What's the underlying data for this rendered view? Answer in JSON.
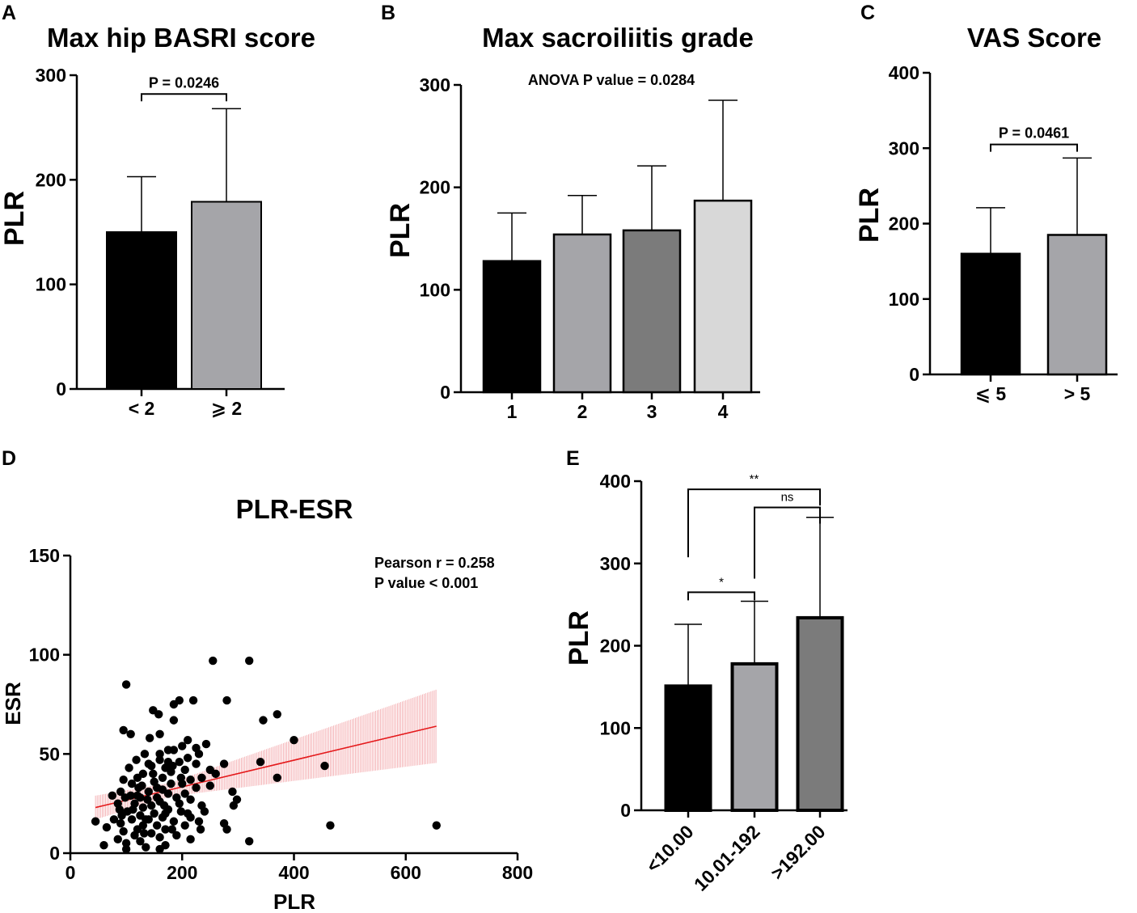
{
  "figure": {
    "panels": [
      "A",
      "B",
      "C",
      "D",
      "E"
    ]
  },
  "colors": {
    "black": "#000000",
    "gray1": "#a5a5a9",
    "gray2": "#7b7b7b",
    "gray3": "#d8d8d8",
    "regression": "#e41a1c",
    "band": "#f2a0a4"
  },
  "chart_data": [
    {
      "id": "A",
      "type": "bar",
      "title": "Max hip BASRI score",
      "ylabel": "PLR",
      "xlabel": "",
      "ylim": [
        0,
        300
      ],
      "yticks": [
        0,
        100,
        200,
        300
      ],
      "categories": [
        "< 2",
        "⩾ 2"
      ],
      "values": [
        150,
        179
      ],
      "errors": [
        53,
        89
      ],
      "fills": [
        "#000000",
        "#a5a5a9"
      ],
      "brackets": [
        {
          "from": 0,
          "to": 1,
          "y": 282,
          "label": "P = 0.0246"
        }
      ]
    },
    {
      "id": "B",
      "type": "bar",
      "title": "Max sacroiliitis grade",
      "ylabel": "PLR",
      "xlabel": "",
      "ylim": [
        0,
        300
      ],
      "yticks": [
        0,
        100,
        200,
        300
      ],
      "categories": [
        "1",
        "2",
        "3",
        "4"
      ],
      "values": [
        128,
        154,
        158,
        187
      ],
      "errors": [
        47,
        38,
        63,
        98
      ],
      "fills": [
        "#000000",
        "#a5a5a9",
        "#7b7b7b",
        "#d8d8d8"
      ],
      "annotation": "ANOVA P value = 0.0284"
    },
    {
      "id": "C",
      "type": "bar",
      "title": "VAS Score",
      "ylabel": "PLR",
      "xlabel": "",
      "ylim": [
        0,
        400
      ],
      "yticks": [
        0,
        100,
        200,
        300,
        400
      ],
      "categories": [
        "⩽ 5",
        "> 5"
      ],
      "values": [
        160,
        185
      ],
      "errors": [
        61,
        102
      ],
      "fills": [
        "#000000",
        "#a5a5a9"
      ],
      "brackets": [
        {
          "from": 0,
          "to": 1,
          "y": 305,
          "label": "P = 0.0461"
        }
      ]
    },
    {
      "id": "D",
      "type": "scatter",
      "title": "PLR-ESR",
      "xlabel": "PLR",
      "ylabel": "ESR",
      "xlim": [
        0,
        800
      ],
      "ylim": [
        0,
        150
      ],
      "xticks": [
        0,
        200,
        400,
        600,
        800
      ],
      "yticks": [
        0,
        50,
        100,
        150
      ],
      "stats": [
        "Pearson r = 0.258",
        "P value < 0.001"
      ],
      "regression": {
        "x": [
          45,
          655
        ],
        "y": [
          23,
          64
        ]
      },
      "band": {
        "x": [
          45,
          655
        ],
        "lower": [
          17,
          46
        ],
        "upper": [
          29,
          83
        ],
        "center_x": 180,
        "center_half": 3.5
      },
      "points": [
        [
          100,
          85
        ],
        [
          255,
          97
        ],
        [
          320,
          97
        ],
        [
          195,
          77
        ],
        [
          220,
          77
        ],
        [
          185,
          75
        ],
        [
          280,
          77
        ],
        [
          148,
          72
        ],
        [
          158,
          70
        ],
        [
          370,
          70
        ],
        [
          345,
          67
        ],
        [
          185,
          67
        ],
        [
          95,
          62
        ],
        [
          108,
          60
        ],
        [
          160,
          60
        ],
        [
          210,
          57
        ],
        [
          243,
          55
        ],
        [
          200,
          54
        ],
        [
          225,
          53
        ],
        [
          230,
          50
        ],
        [
          175,
          52
        ],
        [
          133,
          50
        ],
        [
          400,
          57
        ],
        [
          275,
          45
        ],
        [
          195,
          46
        ],
        [
          160,
          47
        ],
        [
          140,
          45
        ],
        [
          145,
          44
        ],
        [
          183,
          44
        ],
        [
          340,
          46
        ],
        [
          455,
          44
        ],
        [
          170,
          43
        ],
        [
          205,
          42
        ],
        [
          250,
          42
        ],
        [
          260,
          40
        ],
        [
          130,
          40
        ],
        [
          165,
          38
        ],
        [
          215,
          37
        ],
        [
          235,
          38
        ],
        [
          370,
          38
        ],
        [
          95,
          37
        ],
        [
          180,
          35
        ],
        [
          110,
          35
        ],
        [
          200,
          35
        ],
        [
          122,
          33
        ],
        [
          155,
          33
        ],
        [
          225,
          33
        ],
        [
          140,
          31
        ],
        [
          90,
          31
        ],
        [
          290,
          31
        ],
        [
          175,
          30
        ],
        [
          108,
          29
        ],
        [
          125,
          28
        ],
        [
          190,
          28
        ],
        [
          215,
          27
        ],
        [
          298,
          27
        ],
        [
          75,
          29
        ],
        [
          160,
          26
        ],
        [
          85,
          25
        ],
        [
          115,
          25
        ],
        [
          145,
          24
        ],
        [
          235,
          24
        ],
        [
          292,
          24
        ],
        [
          130,
          23
        ],
        [
          175,
          22
        ],
        [
          102,
          21
        ],
        [
          198,
          21
        ],
        [
          240,
          21
        ],
        [
          150,
          20
        ],
        [
          125,
          19
        ],
        [
          92,
          19
        ],
        [
          215,
          18
        ],
        [
          165,
          18
        ],
        [
          140,
          17
        ],
        [
          110,
          17
        ],
        [
          45,
          16
        ],
        [
          185,
          16
        ],
        [
          230,
          16
        ],
        [
          275,
          15
        ],
        [
          90,
          15
        ],
        [
          155,
          14
        ],
        [
          130,
          14
        ],
        [
          205,
          14
        ],
        [
          465,
          14
        ],
        [
          655,
          14
        ],
        [
          65,
          13
        ],
        [
          120,
          12
        ],
        [
          170,
          12
        ],
        [
          233,
          12
        ],
        [
          280,
          12
        ],
        [
          95,
          11
        ],
        [
          145,
          10
        ],
        [
          115,
          9
        ],
        [
          190,
          9
        ],
        [
          160,
          8
        ],
        [
          85,
          7
        ],
        [
          215,
          7
        ],
        [
          320,
          6
        ],
        [
          125,
          6
        ],
        [
          100,
          5
        ],
        [
          60,
          4
        ],
        [
          170,
          4
        ],
        [
          135,
          3
        ],
        [
          100,
          2
        ],
        [
          160,
          2
        ],
        [
          120,
          29
        ],
        [
          180,
          41
        ],
        [
          210,
          48
        ],
        [
          150,
          36
        ],
        [
          138,
          27
        ],
        [
          105,
          43
        ],
        [
          160,
          50
        ],
        [
          128,
          34
        ],
        [
          195,
          25
        ],
        [
          165,
          32
        ],
        [
          112,
          22
        ],
        [
          148,
          40
        ],
        [
          88,
          22
        ],
        [
          170,
          20
        ],
        [
          205,
          30
        ],
        [
          142,
          58
        ],
        [
          120,
          38
        ],
        [
          225,
          45
        ],
        [
          185,
          52
        ],
        [
          118,
          47
        ],
        [
          250,
          34
        ],
        [
          135,
          17
        ],
        [
          182,
          12
        ],
        [
          198,
          38
        ],
        [
          155,
          28
        ],
        [
          98,
          28
        ],
        [
          175,
          46
        ],
        [
          132,
          10
        ],
        [
          210,
          20
        ],
        [
          78,
          17
        ],
        [
          168,
          24
        ]
      ]
    },
    {
      "id": "E",
      "type": "bar",
      "title": "",
      "ylabel": "PLR",
      "xlabel": "",
      "ylim": [
        0,
        400
      ],
      "yticks": [
        0,
        100,
        200,
        300,
        400
      ],
      "categories": [
        "<10.00",
        "10.01-192",
        ">192.00"
      ],
      "values": [
        151,
        178,
        234
      ],
      "errors": [
        75,
        76,
        122
      ],
      "fills": [
        "#000000",
        "#a5a5a9",
        "#7b7b7b"
      ],
      "brackets": [
        {
          "from": 0,
          "to": 1,
          "y": 265,
          "label": "*"
        },
        {
          "from": 1,
          "to": 2,
          "y": 368,
          "label": "ns"
        },
        {
          "from": 0,
          "to": 2,
          "y": 390,
          "label": "**"
        }
      ]
    }
  ]
}
